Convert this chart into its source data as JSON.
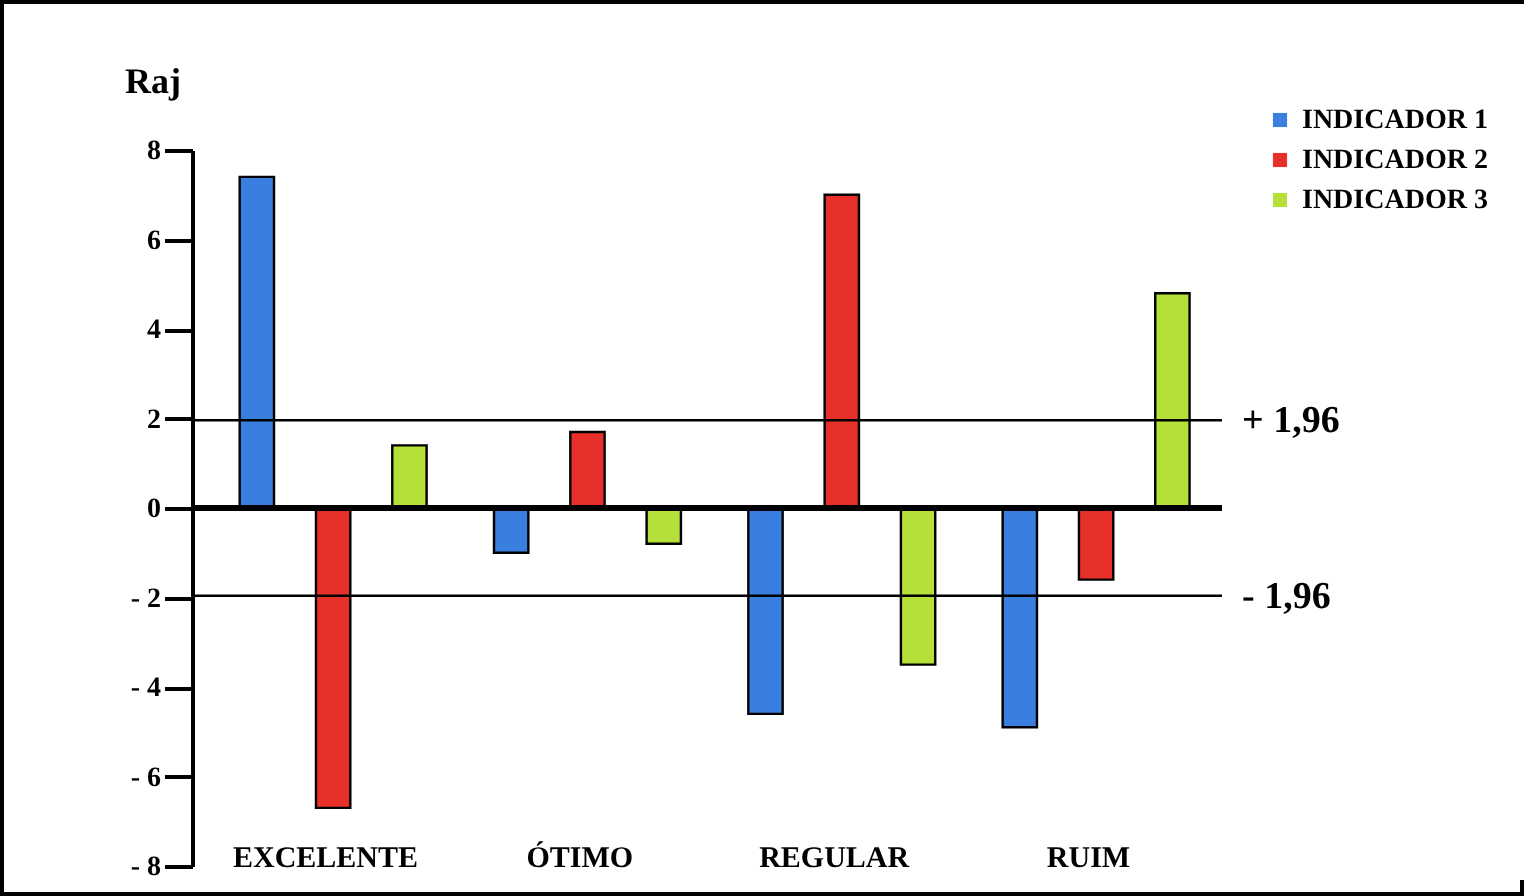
{
  "chart_data": {
    "type": "bar",
    "ylabel": "Raj",
    "categories": [
      "EXCELENTE",
      "ÓTIMO",
      "REGULAR",
      "RUIM"
    ],
    "series": [
      {
        "name": "INDICADOR 1",
        "color": "#3a7fe0",
        "values": [
          7.4,
          -1.0,
          -4.6,
          -4.9
        ]
      },
      {
        "name": "INDICADOR 2",
        "color": "#e8302a",
        "values": [
          -6.7,
          1.7,
          7.0,
          -1.6
        ]
      },
      {
        "name": "INDICADOR 3",
        "color": "#b5e03a",
        "values": [
          1.4,
          -0.8,
          -3.5,
          4.8
        ]
      }
    ],
    "ylim": [
      -8,
      8
    ],
    "yticks": [
      {
        "value": -8,
        "label": "- 8"
      },
      {
        "value": -6,
        "label": "- 6"
      },
      {
        "value": -4,
        "label": "- 4"
      },
      {
        "value": -2,
        "label": "- 2"
      },
      0,
      2,
      4,
      6,
      8
    ],
    "ref_lines": [
      {
        "axis": "y",
        "value": 1.96,
        "label": "+ 1,96"
      },
      {
        "axis": "y",
        "value": -1.96,
        "label": "- 1,96"
      },
      {
        "axis": "y",
        "value": 0,
        "label": null
      }
    ],
    "grid": false,
    "legend": "top right"
  }
}
